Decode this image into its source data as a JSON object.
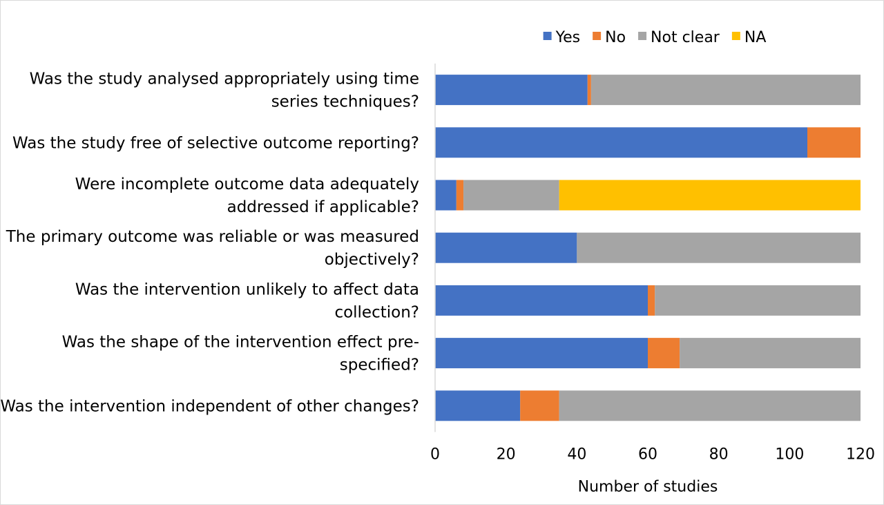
{
  "chart_data": {
    "type": "bar",
    "orientation": "horizontal",
    "stacked": true,
    "categories": [
      [
        "Was the study analysed appropriately using time",
        "series techniques?"
      ],
      [
        "Was the study free of selective outcome reporting?"
      ],
      [
        "Were incomplete outcome data adequately",
        "addressed if applicable?"
      ],
      [
        "The primary outcome was reliable or was measured",
        "objectively?"
      ],
      [
        "Was the intervention unlikely to affect data",
        "collection?"
      ],
      [
        "Was the shape of the intervention effect pre-",
        "specified?"
      ],
      [
        "Was the intervention independent of other changes?"
      ]
    ],
    "series": [
      {
        "name": "Yes",
        "color": "#4472C4",
        "values": [
          43,
          105,
          6,
          40,
          60,
          60,
          24
        ]
      },
      {
        "name": "No",
        "color": "#ED7D31",
        "values": [
          1,
          15,
          2,
          0,
          2,
          9,
          11
        ]
      },
      {
        "name": "Not clear",
        "color": "#A5A5A5",
        "values": [
          76,
          0,
          27,
          80,
          58,
          51,
          85
        ]
      },
      {
        "name": "NA",
        "color": "#FFC000",
        "values": [
          0,
          0,
          85,
          0,
          0,
          0,
          0
        ]
      }
    ],
    "xlim": [
      0,
      120
    ],
    "xticks": [
      0,
      20,
      40,
      60,
      80,
      100,
      120
    ],
    "xlabel": "Number of studies",
    "ylabel": "",
    "title": "",
    "legend_position": "top",
    "grid": false
  }
}
